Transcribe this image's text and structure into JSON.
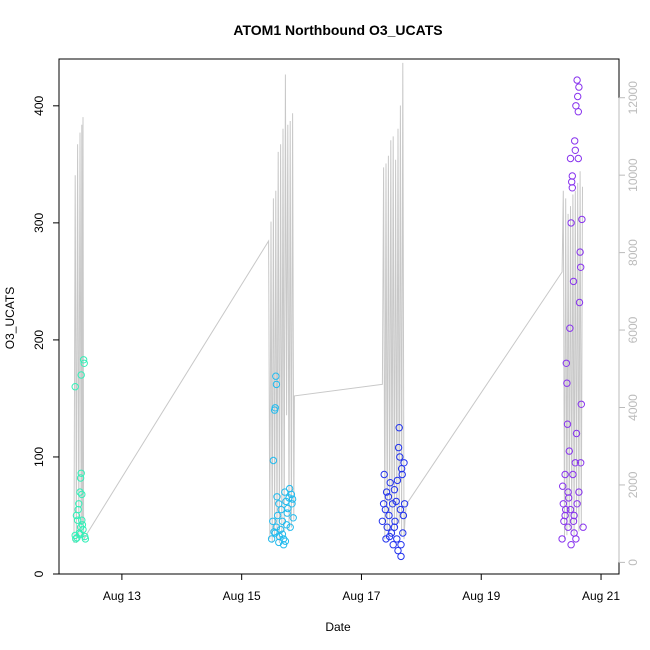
{
  "chart_data": {
    "type": "scatter",
    "title": "ATOM1 Northbound O3_UCATS",
    "xlabel": "Date",
    "ylabel": "O3_UCATS",
    "x_ticks": [
      "Aug 13",
      "Aug 15",
      "Aug 17",
      "Aug 19",
      "Aug 21"
    ],
    "x_tick_values": [
      13,
      15,
      17,
      19,
      21
    ],
    "xlim": [
      11.95,
      21.3
    ],
    "ylim": [
      0,
      440
    ],
    "y_ticks": [
      0,
      100,
      200,
      300,
      400
    ],
    "y2_ticks": [
      0,
      2000,
      4000,
      6000,
      8000,
      10000,
      12000
    ],
    "y2lim": [
      -300,
      13000
    ],
    "grid": false,
    "series_scatter": [
      {
        "color": "#33f0b8",
        "points": [
          [
            12.22,
            160
          ],
          [
            12.22,
            33
          ],
          [
            12.23,
            30
          ],
          [
            12.24,
            50
          ],
          [
            12.26,
            46
          ],
          [
            12.27,
            55
          ],
          [
            12.28,
            60
          ],
          [
            12.29,
            35
          ],
          [
            12.3,
            70
          ],
          [
            12.31,
            40
          ],
          [
            12.31,
            82
          ],
          [
            12.32,
            86
          ],
          [
            12.32,
            170
          ],
          [
            12.33,
            68
          ],
          [
            12.34,
            42
          ],
          [
            12.35,
            38
          ],
          [
            12.36,
            183
          ],
          [
            12.37,
            180
          ],
          [
            12.38,
            32
          ],
          [
            12.39,
            30
          ],
          [
            12.3,
            34
          ],
          [
            12.25,
            31
          ],
          [
            12.33,
            46
          ]
        ]
      },
      {
        "color": "#22bbee",
        "points": [
          [
            15.5,
            30
          ],
          [
            15.52,
            45
          ],
          [
            15.53,
            97
          ],
          [
            15.55,
            140
          ],
          [
            15.56,
            142
          ],
          [
            15.57,
            169
          ],
          [
            15.58,
            162
          ],
          [
            15.56,
            35
          ],
          [
            15.58,
            40
          ],
          [
            15.59,
            66
          ],
          [
            15.6,
            50
          ],
          [
            15.62,
            60
          ],
          [
            15.63,
            32
          ],
          [
            15.65,
            38
          ],
          [
            15.66,
            55
          ],
          [
            15.68,
            45
          ],
          [
            15.7,
            30
          ],
          [
            15.72,
            70
          ],
          [
            15.74,
            62
          ],
          [
            15.75,
            42
          ],
          [
            15.77,
            56
          ],
          [
            15.79,
            65
          ],
          [
            15.8,
            73
          ],
          [
            15.81,
            40
          ],
          [
            15.83,
            68
          ],
          [
            15.84,
            60
          ],
          [
            15.86,
            48
          ],
          [
            15.7,
            25
          ],
          [
            15.73,
            28
          ],
          [
            15.68,
            34
          ],
          [
            15.62,
            27
          ],
          [
            15.54,
            36
          ],
          [
            15.76,
            52
          ],
          [
            15.85,
            64
          ]
        ]
      },
      {
        "color": "#2233ee",
        "points": [
          [
            17.35,
            45
          ],
          [
            17.37,
            60
          ],
          [
            17.38,
            85
          ],
          [
            17.4,
            55
          ],
          [
            17.41,
            30
          ],
          [
            17.43,
            40
          ],
          [
            17.45,
            66
          ],
          [
            17.46,
            50
          ],
          [
            17.48,
            78
          ],
          [
            17.5,
            35
          ],
          [
            17.52,
            60
          ],
          [
            17.53,
            25
          ],
          [
            17.55,
            72
          ],
          [
            17.56,
            45
          ],
          [
            17.58,
            62
          ],
          [
            17.59,
            30
          ],
          [
            17.6,
            80
          ],
          [
            17.62,
            108
          ],
          [
            17.63,
            125
          ],
          [
            17.64,
            100
          ],
          [
            17.65,
            55
          ],
          [
            17.66,
            15
          ],
          [
            17.67,
            90
          ],
          [
            17.68,
            85
          ],
          [
            17.69,
            35
          ],
          [
            17.7,
            50
          ],
          [
            17.71,
            95
          ],
          [
            17.72,
            60
          ],
          [
            17.55,
            40
          ],
          [
            17.47,
            32
          ],
          [
            17.42,
            70
          ],
          [
            17.61,
            20
          ],
          [
            17.66,
            25
          ]
        ]
      },
      {
        "color": "#8833ee",
        "points": [
          [
            20.35,
            30
          ],
          [
            20.36,
            75
          ],
          [
            20.37,
            60
          ],
          [
            20.38,
            45
          ],
          [
            20.4,
            85
          ],
          [
            20.41,
            55
          ],
          [
            20.42,
            180
          ],
          [
            20.43,
            163
          ],
          [
            20.44,
            128
          ],
          [
            20.45,
            40
          ],
          [
            20.46,
            65
          ],
          [
            20.47,
            105
          ],
          [
            20.48,
            210
          ],
          [
            20.49,
            355
          ],
          [
            20.5,
            300
          ],
          [
            20.51,
            335
          ],
          [
            20.52,
            340
          ],
          [
            20.53,
            85
          ],
          [
            20.54,
            250
          ],
          [
            20.55,
            50
          ],
          [
            20.56,
            370
          ],
          [
            20.57,
            362
          ],
          [
            20.58,
            400
          ],
          [
            20.59,
            120
          ],
          [
            20.6,
            422
          ],
          [
            20.61,
            408
          ],
          [
            20.62,
            395
          ],
          [
            20.63,
            416
          ],
          [
            20.64,
            232
          ],
          [
            20.65,
            275
          ],
          [
            20.66,
            262
          ],
          [
            20.67,
            145
          ],
          [
            20.68,
            303
          ],
          [
            20.62,
            355
          ],
          [
            20.58,
            30
          ],
          [
            20.63,
            70
          ],
          [
            20.6,
            60
          ],
          [
            20.55,
            35
          ],
          [
            20.5,
            25
          ],
          [
            20.45,
            70
          ],
          [
            20.4,
            50
          ],
          [
            20.66,
            95
          ],
          [
            20.7,
            40
          ],
          [
            20.52,
            330
          ],
          [
            20.57,
            95
          ],
          [
            20.54,
            45
          ],
          [
            20.49,
            55
          ]
        ]
      }
    ],
    "altitude_line": {
      "color": "#c8c8c8",
      "x": [
        12.2,
        12.22,
        12.24,
        12.26,
        12.28,
        12.3,
        12.32,
        12.33,
        12.34,
        12.35,
        12.36,
        12.37,
        12.4,
        15.45,
        15.47,
        15.49,
        15.51,
        15.53,
        15.55,
        15.57,
        15.59,
        15.61,
        15.63,
        15.65,
        15.67,
        15.69,
        15.71,
        15.73,
        15.75,
        15.77,
        15.79,
        15.81,
        15.83,
        15.85,
        15.87,
        15.88,
        17.35,
        17.37,
        17.39,
        17.41,
        17.43,
        17.45,
        17.47,
        17.49,
        17.51,
        17.53,
        17.55,
        17.57,
        17.59,
        17.61,
        17.63,
        17.65,
        17.67,
        17.69,
        17.71,
        17.73,
        17.75,
        20.35,
        20.37,
        20.39,
        20.41,
        20.43,
        20.45,
        20.47,
        20.49,
        20.51,
        20.53,
        20.55,
        20.57,
        20.59,
        20.61,
        20.63,
        20.65,
        20.67,
        20.69
      ],
      "y": [
        500,
        10000,
        500,
        10800,
        600,
        11100,
        700,
        11300,
        1000,
        11500,
        800,
        600,
        700,
        8300,
        600,
        8800,
        500,
        9400,
        700,
        9600,
        600,
        10600,
        500,
        10800,
        700,
        11200,
        800,
        12600,
        3800,
        11300,
        800,
        11400,
        900,
        11600,
        1100,
        4300,
        4600,
        10200,
        600,
        10300,
        800,
        10500,
        700,
        10900,
        900,
        11000,
        700,
        10400,
        900,
        11200,
        1000,
        11800,
        700,
        12900,
        600,
        1200,
        1500,
        7500,
        9600,
        600,
        9400,
        700,
        9000,
        900,
        9200,
        800,
        9500,
        700,
        9600,
        1000,
        9800,
        800,
        10100,
        900,
        9700
      ]
    }
  }
}
